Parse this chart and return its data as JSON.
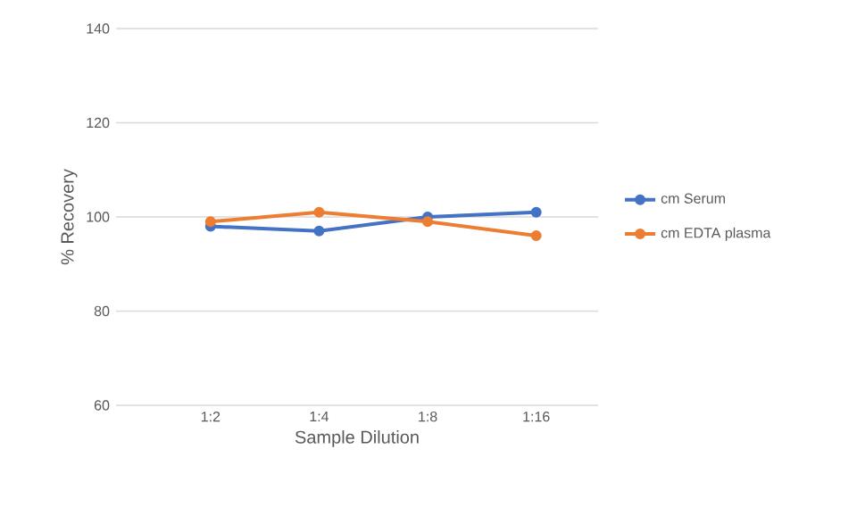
{
  "chart_data": {
    "type": "line",
    "xlabel": "Sample Dilution",
    "ylabel": "% Recovery",
    "categories": [
      "1:2",
      "1:4",
      "1:8",
      "1:16"
    ],
    "series": [
      {
        "name": "cm Serum",
        "color": "#4472c4",
        "values": [
          98,
          97,
          100,
          101
        ]
      },
      {
        "name": "cm EDTA plasma",
        "color": "#ed7d31",
        "values": [
          99,
          101,
          99,
          96
        ]
      }
    ],
    "ylim": [
      60,
      140
    ],
    "yticks": [
      60,
      80,
      100,
      120,
      140
    ],
    "grid": "y",
    "legend": "right",
    "marker": "circle",
    "line_style": "solid"
  }
}
